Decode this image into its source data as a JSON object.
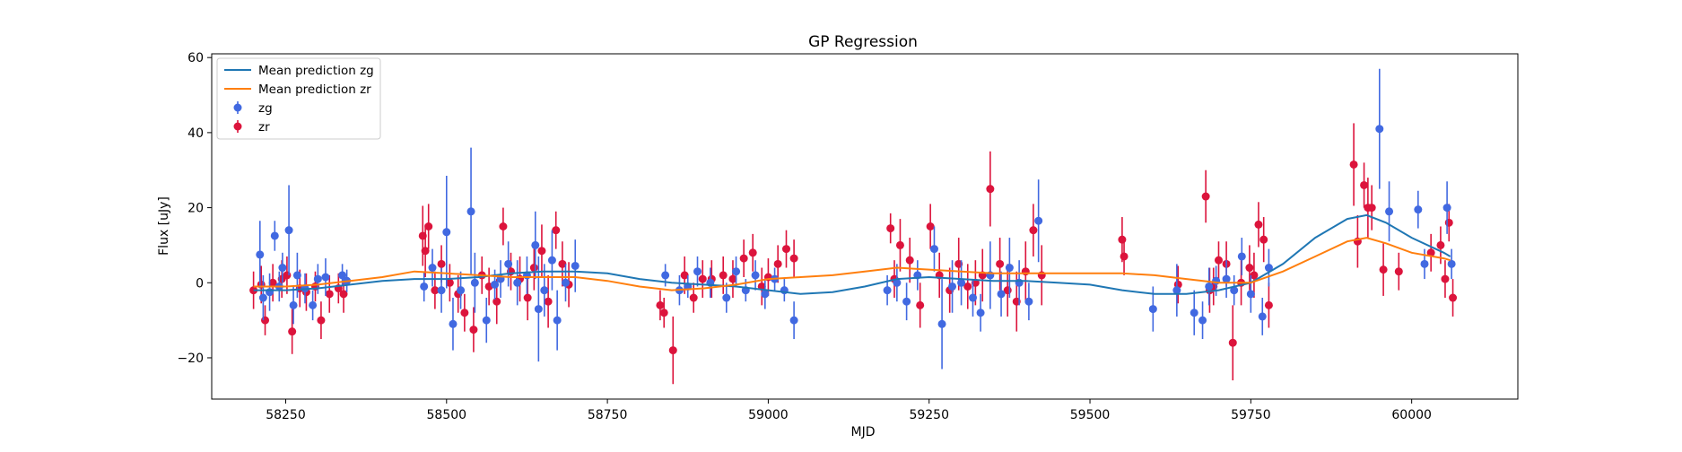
{
  "chart_data": {
    "type": "scatter",
    "title": "GP Regression",
    "xlabel": "MJD",
    "ylabel": "Flux [uJy]",
    "xlim": [
      58135,
      60165
    ],
    "ylim": [
      -31,
      61
    ],
    "xticks": [
      58250,
      58500,
      58750,
      59000,
      59250,
      59500,
      59750,
      60000
    ],
    "yticks": [
      -20,
      0,
      20,
      40,
      60
    ],
    "grid": false,
    "legend_position": "top-left",
    "legend": [
      "Mean prediction zg",
      "Mean prediction zr",
      "zg",
      "zr"
    ],
    "colors": {
      "zg_line": "#1f77b4",
      "zr_line": "#ff7f0e",
      "zg": "#4169e1",
      "zr": "#dc143c"
    },
    "series": [
      {
        "name": "Mean prediction zg",
        "kind": "line",
        "x": [
          58200,
          58250,
          58300,
          58350,
          58400,
          58450,
          58500,
          58550,
          58600,
          58650,
          58700,
          58750,
          58800,
          58850,
          58900,
          58950,
          59000,
          59050,
          59100,
          59150,
          59200,
          59250,
          59300,
          59350,
          59400,
          59450,
          59500,
          59550,
          59600,
          59650,
          59700,
          59750,
          59800,
          59850,
          59900,
          59930,
          59960,
          60000,
          60050,
          60060
        ],
        "y": [
          -2,
          -2,
          -1.5,
          -0.5,
          0.5,
          1,
          1,
          1.5,
          2.5,
          3,
          3,
          2.5,
          1,
          0,
          -0.5,
          -1,
          -2,
          -3,
          -2.5,
          -1,
          1,
          1.5,
          1,
          0.5,
          0.5,
          0,
          -0.5,
          -2,
          -3,
          -3,
          -2,
          0,
          5,
          12,
          17,
          18,
          16,
          12,
          8,
          7
        ]
      },
      {
        "name": "Mean prediction zr",
        "kind": "line",
        "x": [
          58200,
          58250,
          58300,
          58350,
          58400,
          58450,
          58500,
          58550,
          58600,
          58650,
          58700,
          58750,
          58800,
          58850,
          58900,
          58950,
          59000,
          59050,
          59100,
          59150,
          59200,
          59250,
          59300,
          59350,
          59400,
          59450,
          59500,
          59550,
          59600,
          59650,
          59700,
          59750,
          59800,
          59850,
          59900,
          59930,
          59960,
          60000,
          60050,
          60060
        ],
        "y": [
          -1,
          -1,
          -0.5,
          0.5,
          1.5,
          3,
          2.5,
          2,
          1.5,
          1.5,
          1.5,
          0.5,
          -1,
          -2,
          -1.5,
          -0.5,
          1,
          1.5,
          2,
          3,
          4,
          3.5,
          3,
          2.5,
          2.5,
          2.5,
          2.5,
          2.5,
          2,
          1,
          0,
          0,
          3,
          7,
          11,
          12,
          10.5,
          8,
          6.5,
          6
        ]
      },
      {
        "name": "zg",
        "kind": "errorbar",
        "x": [
          58210,
          58215,
          58225,
          58233,
          58240,
          58245,
          58255,
          58262,
          58268,
          58280,
          58292,
          58300,
          58312,
          58338,
          58345,
          58465,
          58478,
          58492,
          58500,
          58510,
          58522,
          58538,
          58544,
          58562,
          58575,
          58584,
          58596,
          58610,
          58625,
          58638,
          58643,
          58652,
          58664,
          58672,
          58685,
          58700,
          58840,
          58862,
          58875,
          58890,
          58910,
          58935,
          58950,
          58965,
          58980,
          58995,
          59010,
          59025,
          59040,
          59185,
          59200,
          59215,
          59232,
          59258,
          59270,
          59286,
          59300,
          59318,
          59330,
          59345,
          59362,
          59375,
          59390,
          59405,
          59420,
          59598,
          59635,
          59662,
          59675,
          59685,
          59696,
          59712,
          59724,
          59736,
          59750,
          59768,
          59778,
          59950,
          59965,
          60010,
          60020,
          60055,
          60062
        ],
        "y": [
          7.5,
          -4,
          -2.5,
          12.5,
          -1,
          4,
          14,
          -6,
          2,
          -1.5,
          -6,
          1,
          1.5,
          2,
          0.5,
          -1,
          4,
          -2,
          13.5,
          -11,
          -2,
          19,
          0,
          -10,
          -0.5,
          1,
          5,
          0,
          2,
          10,
          -7,
          -2,
          6,
          -10,
          0,
          4.5,
          2,
          -2,
          -1,
          3,
          0,
          -4,
          3,
          -2,
          2,
          -3,
          1,
          -2,
          -10,
          -2,
          0,
          -5,
          2,
          9,
          -11,
          -1,
          0,
          -4,
          -8,
          2,
          -3,
          4,
          0,
          -5,
          16.5,
          -7,
          -2,
          -8,
          -10,
          -1,
          0.5,
          1,
          -2,
          7,
          -3,
          -9,
          4,
          41,
          19,
          19.5,
          5,
          20,
          5
        ],
        "err": [
          9,
          6,
          5,
          4,
          4,
          4,
          12,
          5,
          6,
          4,
          4,
          4,
          5,
          3,
          3,
          4,
          5,
          6,
          15,
          7,
          5,
          17,
          8,
          6,
          4,
          5,
          6,
          6,
          5,
          9,
          14,
          7,
          8,
          8,
          5,
          7,
          3,
          4,
          3,
          4,
          4,
          4,
          4,
          3,
          4,
          4,
          3,
          3,
          5,
          4,
          5,
          5,
          4,
          6,
          12,
          7,
          6,
          5,
          5,
          9,
          6,
          8,
          6,
          5,
          11,
          6,
          7,
          6,
          5,
          5,
          4,
          5,
          4,
          5,
          5,
          5,
          5,
          16,
          8,
          5,
          4,
          7,
          4
        ]
      },
      {
        "name": "zr",
        "kind": "errorbar",
        "x": [
          58200,
          58212,
          58218,
          58230,
          58244,
          58252,
          58260,
          58272,
          58282,
          58296,
          58305,
          58318,
          58332,
          58340,
          58463,
          58467,
          58472,
          58482,
          58492,
          58505,
          58518,
          58528,
          58542,
          58555,
          58566,
          58578,
          58588,
          58600,
          58614,
          58626,
          58636,
          58648,
          58658,
          58670,
          58680,
          58690,
          58832,
          58838,
          58852,
          58870,
          58884,
          58898,
          58912,
          58930,
          58945,
          58962,
          58976,
          58990,
          59000,
          59015,
          59028,
          59040,
          59190,
          59196,
          59205,
          59220,
          59236,
          59252,
          59266,
          59282,
          59296,
          59310,
          59322,
          59333,
          59345,
          59360,
          59372,
          59386,
          59400,
          59412,
          59425,
          59550,
          59553,
          59637,
          59680,
          59686,
          59692,
          59700,
          59712,
          59722,
          59735,
          59748,
          59755,
          59762,
          59770,
          59778,
          59910,
          59916,
          59926,
          59932,
          59938,
          59956,
          59980,
          60030,
          60045,
          60052,
          60058,
          60064
        ],
        "y": [
          -2,
          -0.5,
          -10,
          0,
          1,
          2,
          -13,
          -1.5,
          -2.5,
          -1,
          -10,
          -3,
          -1.5,
          -3,
          12.5,
          8.5,
          15,
          -2,
          5,
          0,
          -3,
          -8,
          -12.5,
          2,
          -1,
          -5,
          15,
          3,
          1,
          -4,
          4,
          8.5,
          -5,
          14,
          5,
          -0.5,
          -6,
          -8,
          -18,
          2,
          -4,
          1,
          1,
          2,
          1,
          6.5,
          8,
          -1,
          1.5,
          5,
          9,
          6.5,
          14.5,
          1,
          10,
          6,
          -6,
          15,
          2,
          -2,
          5,
          -1,
          0,
          2,
          25,
          5,
          -2,
          -5,
          3,
          14,
          2,
          11.5,
          7,
          -0.5,
          23,
          -2,
          -1,
          6,
          5,
          -16,
          0,
          4,
          2,
          15.5,
          11.5,
          -6,
          31.5,
          11,
          26,
          20,
          20,
          3.5,
          3,
          8,
          10,
          1,
          16,
          -4
        ],
        "err": [
          5,
          5,
          4,
          5,
          5,
          5,
          6,
          5,
          5,
          4,
          5,
          5,
          4,
          5,
          8,
          7,
          6,
          5,
          5,
          5,
          5,
          5,
          6,
          5,
          5,
          6,
          5,
          5,
          6,
          6,
          6,
          7,
          7,
          5,
          6,
          6,
          4,
          4,
          9,
          5,
          4,
          5,
          5,
          5,
          5,
          5,
          5,
          5,
          5,
          5,
          5,
          5,
          4,
          5,
          7,
          6,
          6,
          6,
          6,
          6,
          7,
          6,
          6,
          7,
          10,
          7,
          7,
          8,
          8,
          7,
          8,
          6,
          5,
          5,
          7,
          6,
          5,
          5,
          6,
          10,
          6,
          6,
          6,
          6,
          6,
          6,
          11,
          7,
          6,
          8,
          6,
          7,
          5,
          5,
          5,
          5,
          5,
          5
        ]
      }
    ]
  }
}
